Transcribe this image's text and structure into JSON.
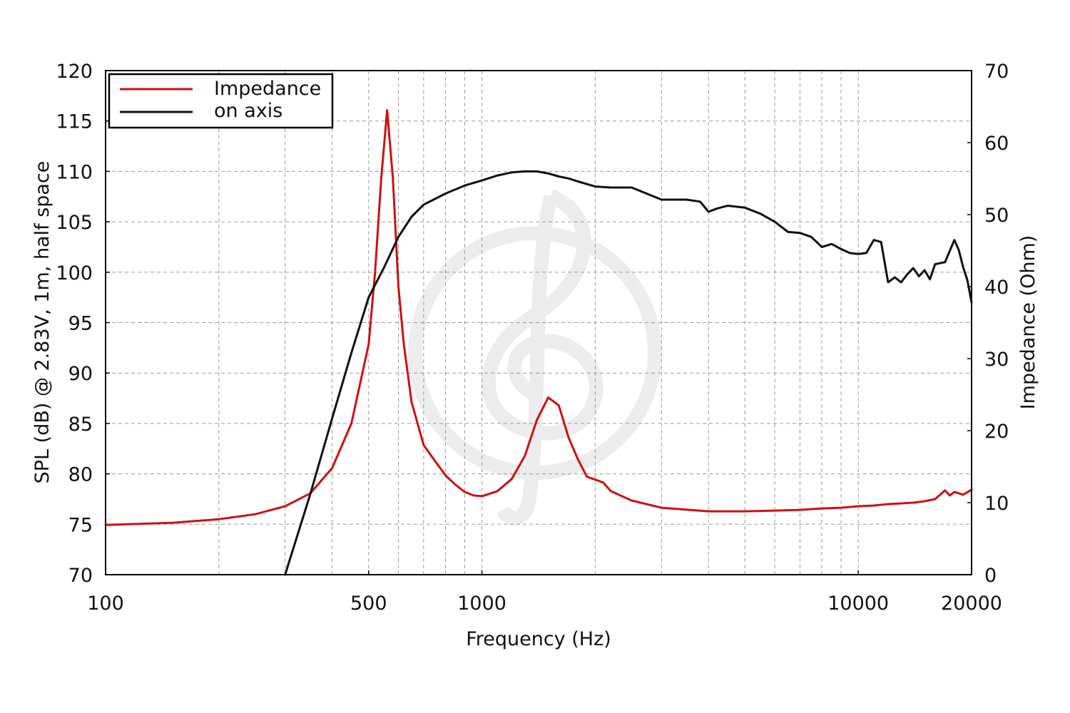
{
  "chart_data": {
    "type": "line",
    "xlabel": "Frequency (Hz)",
    "ylabel_left": "SPL (dB) @ 2.83V, 1m, half space",
    "ylabel_right": "Impedance (Ohm)",
    "x_scale": "log",
    "xlim": [
      100,
      20000
    ],
    "ylim_left": [
      70,
      120
    ],
    "ylim_right": [
      0,
      70
    ],
    "x_tick_labels": [
      "100",
      "500",
      "1000",
      "10000",
      "20000"
    ],
    "y_left_ticks": [
      "70",
      "75",
      "80",
      "85",
      "90",
      "95",
      "100",
      "105",
      "110",
      "115",
      "120"
    ],
    "y_right_ticks": [
      "0",
      "10",
      "20",
      "30",
      "40",
      "50",
      "60",
      "70"
    ],
    "grid": true,
    "legend_position": "top-left",
    "series": [
      {
        "name": "Impedance",
        "axis": "right",
        "color": "#cc1111",
        "x": [
          100,
          150,
          200,
          250,
          300,
          350,
          400,
          450,
          500,
          520,
          540,
          560,
          580,
          600,
          620,
          650,
          700,
          750,
          800,
          850,
          900,
          950,
          1000,
          1100,
          1200,
          1300,
          1400,
          1500,
          1600,
          1700,
          1800,
          1900,
          2000,
          2100,
          2200,
          2500,
          3000,
          4000,
          5000,
          6000,
          7000,
          8000,
          9000,
          10000,
          11000,
          12000,
          13000,
          14000,
          15000,
          16000,
          17000,
          17500,
          18000,
          18500,
          19000,
          20000
        ],
        "values": [
          6.9,
          7.2,
          7.7,
          8.4,
          9.5,
          11.3,
          14.8,
          21,
          32,
          42,
          55,
          64.5,
          55,
          40,
          32,
          24,
          18,
          15.8,
          13.8,
          12.5,
          11.5,
          11.0,
          10.9,
          11.6,
          13.3,
          16.5,
          21.5,
          24.6,
          23.5,
          19,
          16,
          13.6,
          13.2,
          12.8,
          11.6,
          10.3,
          9.3,
          8.8,
          8.8,
          8.9,
          9.0,
          9.2,
          9.3,
          9.5,
          9.6,
          9.8,
          9.9,
          10.0,
          10.2,
          10.5,
          11.7,
          11.0,
          11.5,
          11.3,
          11.1,
          11.8
        ]
      },
      {
        "name": "on axis",
        "axis": "left",
        "color": "#111111",
        "x": [
          300,
          350,
          400,
          450,
          500,
          550,
          600,
          650,
          700,
          800,
          900,
          1000,
          1100,
          1200,
          1300,
          1400,
          1500,
          1600,
          1700,
          1800,
          2000,
          2200,
          2500,
          3000,
          3500,
          3800,
          4000,
          4200,
          4500,
          5000,
          5500,
          6000,
          6500,
          7000,
          7500,
          8000,
          8500,
          9000,
          9500,
          10000,
          10500,
          11000,
          11500,
          12000,
          12500,
          13000,
          13500,
          14000,
          14500,
          15000,
          15500,
          16000,
          17000,
          18000,
          18500,
          19000,
          19500,
          20000
        ],
        "values": [
          70,
          78,
          85.5,
          92,
          97.5,
          100.5,
          103.5,
          105.5,
          106.7,
          107.8,
          108.6,
          109.1,
          109.6,
          109.9,
          110.0,
          110.0,
          109.8,
          109.5,
          109.3,
          109.0,
          108.5,
          108.4,
          108.4,
          107.2,
          107.2,
          107.0,
          106.0,
          106.3,
          106.6,
          106.4,
          105.8,
          105.0,
          104.0,
          103.9,
          103.5,
          102.5,
          102.8,
          102.3,
          101.9,
          101.8,
          101.9,
          103.2,
          103.0,
          99.0,
          99.5,
          99.0,
          99.8,
          100.4,
          99.6,
          100.2,
          99.3,
          100.8,
          101.0,
          103.2,
          102.2,
          100.5,
          99.2,
          97.0
        ]
      }
    ]
  }
}
